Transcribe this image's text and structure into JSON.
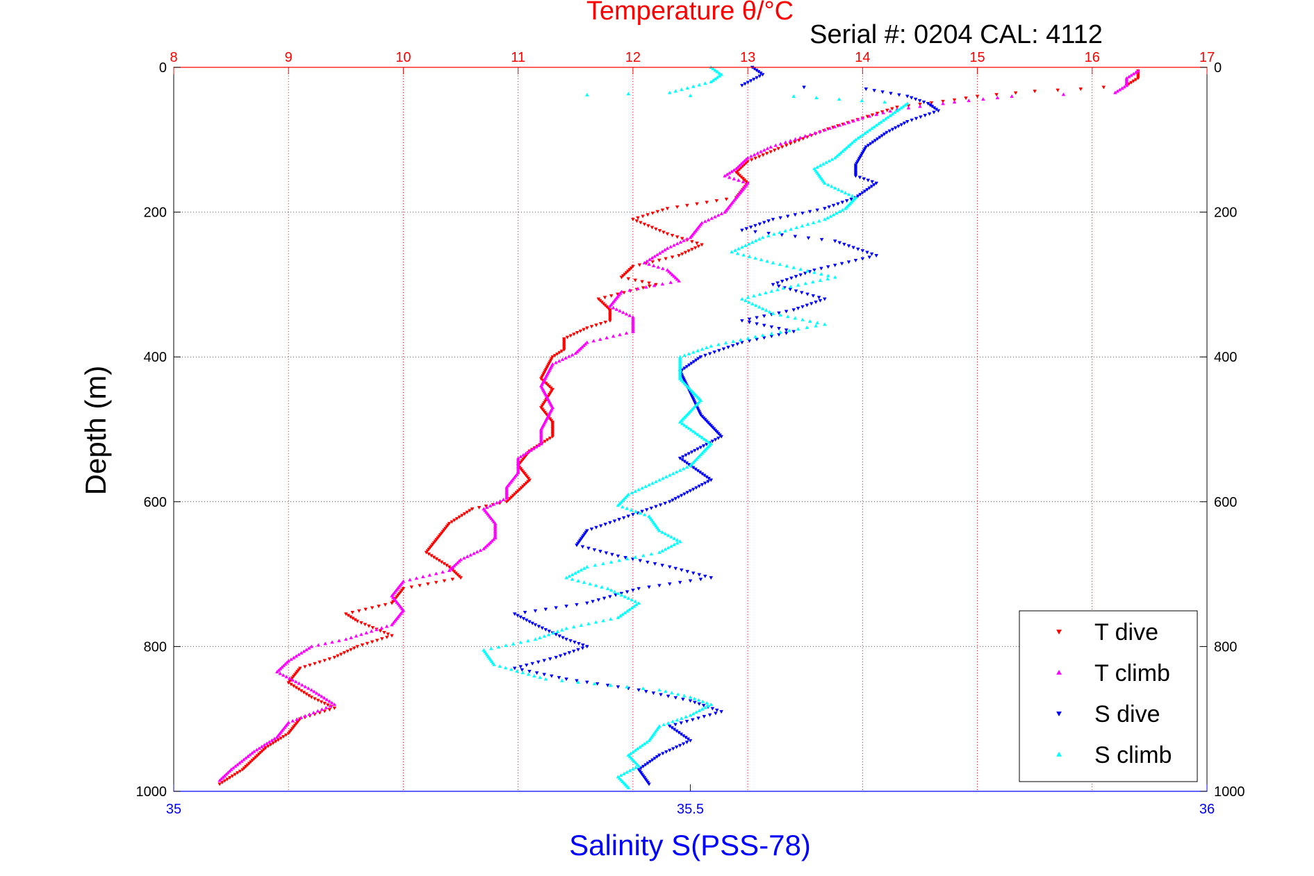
{
  "chart_data": {
    "type": "scatter",
    "title": "Temperature θ/°C",
    "annotation": "Serial #: 0204  CAL: 4112",
    "ylabel": "Depth (m)",
    "xlabel_bottom": "Salinity S(PSS-78)",
    "ylim": [
      0,
      1000
    ],
    "y_reversed": true,
    "temperature_axis": {
      "lim": [
        8,
        17
      ],
      "ticks": [
        "8",
        "9",
        "10",
        "11",
        "12",
        "13",
        "14",
        "15",
        "16",
        "17"
      ]
    },
    "salinity_axis": {
      "lim": [
        35,
        36
      ],
      "ticks": [
        "35",
        "35.5",
        "36"
      ]
    },
    "depth_ticks": [
      "0",
      "200",
      "400",
      "600",
      "800",
      "1000"
    ],
    "grid": true,
    "legend_position": "bottom-right",
    "colors": {
      "temp_axis": "#ff0000",
      "sal_axis": "#0000ff",
      "t_dive": "#ff0000",
      "t_climb": "#ff00ff",
      "s_dive": "#0000ff",
      "s_climb": "#00ffff",
      "grid_h": "#555555",
      "grid_v": "#ff0000"
    },
    "series": [
      {
        "name": "T dive",
        "axis": "temperature",
        "marker": "triangle-down",
        "color": "#ff0000",
        "points": [
          [
            16.4,
            5
          ],
          [
            16.4,
            15
          ],
          [
            16.3,
            25
          ],
          [
            15.9,
            30
          ],
          [
            15.5,
            33
          ],
          [
            15.0,
            40
          ],
          [
            14.8,
            45
          ],
          [
            14.3,
            55
          ],
          [
            14.0,
            70
          ],
          [
            13.7,
            85
          ],
          [
            13.3,
            110
          ],
          [
            13.0,
            130
          ],
          [
            12.9,
            145
          ],
          [
            13.0,
            160
          ],
          [
            12.9,
            180
          ],
          [
            12.3,
            195
          ],
          [
            12.0,
            210
          ],
          [
            12.3,
            230
          ],
          [
            12.6,
            245
          ],
          [
            12.4,
            260
          ],
          [
            12.0,
            275
          ],
          [
            11.9,
            290
          ],
          [
            12.2,
            300
          ],
          [
            11.7,
            320
          ],
          [
            11.8,
            335
          ],
          [
            11.8,
            350
          ],
          [
            11.6,
            360
          ],
          [
            11.4,
            375
          ],
          [
            11.4,
            390
          ],
          [
            11.3,
            400
          ],
          [
            11.2,
            430
          ],
          [
            11.3,
            445
          ],
          [
            11.2,
            470
          ],
          [
            11.3,
            490
          ],
          [
            11.3,
            510
          ],
          [
            11.1,
            530
          ],
          [
            11.0,
            550
          ],
          [
            11.1,
            570
          ],
          [
            11.0,
            585
          ],
          [
            10.9,
            600
          ],
          [
            10.6,
            610
          ],
          [
            10.4,
            630
          ],
          [
            10.3,
            650
          ],
          [
            10.2,
            670
          ],
          [
            10.4,
            690
          ],
          [
            10.5,
            705
          ],
          [
            10.0,
            720
          ],
          [
            9.9,
            740
          ],
          [
            9.5,
            755
          ],
          [
            9.6,
            765
          ],
          [
            9.9,
            785
          ],
          [
            9.6,
            800
          ],
          [
            9.4,
            815
          ],
          [
            9.1,
            830
          ],
          [
            9.0,
            850
          ],
          [
            9.2,
            870
          ],
          [
            9.4,
            885
          ],
          [
            9.1,
            900
          ],
          [
            9.0,
            920
          ],
          [
            8.8,
            940
          ],
          [
            8.7,
            955
          ],
          [
            8.6,
            970
          ],
          [
            8.4,
            990
          ]
        ]
      },
      {
        "name": "T climb",
        "axis": "temperature",
        "marker": "triangle-up",
        "color": "#ff00ff",
        "points": [
          [
            16.4,
            5
          ],
          [
            16.3,
            15
          ],
          [
            16.3,
            25
          ],
          [
            16.2,
            35
          ],
          [
            15.3,
            40
          ],
          [
            14.8,
            48
          ],
          [
            14.3,
            58
          ],
          [
            14.0,
            70
          ],
          [
            13.8,
            80
          ],
          [
            13.5,
            95
          ],
          [
            13.2,
            110
          ],
          [
            13.0,
            125
          ],
          [
            12.9,
            140
          ],
          [
            12.8,
            150
          ],
          [
            13.0,
            160
          ],
          [
            12.9,
            180
          ],
          [
            12.8,
            200
          ],
          [
            12.6,
            215
          ],
          [
            12.5,
            235
          ],
          [
            12.3,
            250
          ],
          [
            12.1,
            270
          ],
          [
            12.3,
            280
          ],
          [
            12.4,
            295
          ],
          [
            11.9,
            310
          ],
          [
            11.8,
            330
          ],
          [
            12.0,
            345
          ],
          [
            12.0,
            365
          ],
          [
            11.6,
            380
          ],
          [
            11.5,
            395
          ],
          [
            11.3,
            410
          ],
          [
            11.2,
            440
          ],
          [
            11.3,
            470
          ],
          [
            11.2,
            500
          ],
          [
            11.2,
            520
          ],
          [
            11.0,
            540
          ],
          [
            11.0,
            560
          ],
          [
            10.9,
            580
          ],
          [
            10.9,
            595
          ],
          [
            10.7,
            610
          ],
          [
            10.8,
            630
          ],
          [
            10.8,
            650
          ],
          [
            10.7,
            665
          ],
          [
            10.5,
            680
          ],
          [
            10.4,
            695
          ],
          [
            10.0,
            710
          ],
          [
            9.9,
            730
          ],
          [
            10.0,
            750
          ],
          [
            9.9,
            770
          ],
          [
            9.5,
            790
          ],
          [
            9.2,
            800
          ],
          [
            9.0,
            820
          ],
          [
            8.9,
            835
          ],
          [
            9.2,
            860
          ],
          [
            9.4,
            880
          ],
          [
            9.0,
            905
          ],
          [
            8.9,
            925
          ],
          [
            8.7,
            945
          ],
          [
            8.5,
            970
          ],
          [
            8.4,
            985
          ]
        ]
      },
      {
        "name": "S dive",
        "axis": "salinity",
        "marker": "triangle-down",
        "color": "#0000ff",
        "points": [
          [
            35.56,
            0
          ],
          [
            35.57,
            10
          ],
          [
            35.55,
            25
          ],
          [
            35.67,
            30
          ],
          [
            35.71,
            40
          ],
          [
            35.73,
            50
          ],
          [
            35.74,
            60
          ],
          [
            35.71,
            75
          ],
          [
            35.69,
            90
          ],
          [
            35.67,
            110
          ],
          [
            35.66,
            135
          ],
          [
            35.66,
            150
          ],
          [
            35.68,
            160
          ],
          [
            35.66,
            180
          ],
          [
            35.63,
            195
          ],
          [
            35.58,
            210
          ],
          [
            35.55,
            225
          ],
          [
            35.64,
            240
          ],
          [
            35.68,
            260
          ],
          [
            35.62,
            280
          ],
          [
            35.58,
            300
          ],
          [
            35.63,
            320
          ],
          [
            35.6,
            335
          ],
          [
            35.55,
            350
          ],
          [
            35.6,
            365
          ],
          [
            35.55,
            380
          ],
          [
            35.51,
            400
          ],
          [
            35.49,
            420
          ],
          [
            35.5,
            450
          ],
          [
            35.51,
            480
          ],
          [
            35.53,
            510
          ],
          [
            35.49,
            540
          ],
          [
            35.52,
            570
          ],
          [
            35.48,
            600
          ],
          [
            35.44,
            620
          ],
          [
            35.4,
            640
          ],
          [
            35.39,
            660
          ],
          [
            35.43,
            675
          ],
          [
            35.48,
            690
          ],
          [
            35.52,
            705
          ],
          [
            35.45,
            720
          ],
          [
            35.4,
            740
          ],
          [
            35.33,
            755
          ],
          [
            35.35,
            770
          ],
          [
            35.38,
            790
          ],
          [
            35.4,
            800
          ],
          [
            35.37,
            815
          ],
          [
            35.33,
            830
          ],
          [
            35.38,
            845
          ],
          [
            35.45,
            860
          ],
          [
            35.5,
            875
          ],
          [
            35.53,
            890
          ],
          [
            35.48,
            910
          ],
          [
            35.5,
            930
          ],
          [
            35.47,
            950
          ],
          [
            35.45,
            970
          ],
          [
            35.46,
            990
          ]
        ]
      },
      {
        "name": "S climb",
        "axis": "salinity",
        "marker": "triangle-up",
        "color": "#00ffff",
        "points": [
          [
            35.52,
            0
          ],
          [
            35.53,
            10
          ],
          [
            35.52,
            20
          ],
          [
            35.48,
            35
          ],
          [
            35.4,
            38
          ],
          [
            35.6,
            40
          ],
          [
            35.71,
            50
          ],
          [
            35.7,
            60
          ],
          [
            35.68,
            80
          ],
          [
            35.66,
            100
          ],
          [
            35.64,
            125
          ],
          [
            35.62,
            140
          ],
          [
            35.63,
            160
          ],
          [
            35.66,
            180
          ],
          [
            35.65,
            195
          ],
          [
            35.63,
            210
          ],
          [
            35.57,
            235
          ],
          [
            35.54,
            255
          ],
          [
            35.58,
            270
          ],
          [
            35.64,
            290
          ],
          [
            35.59,
            305
          ],
          [
            35.55,
            320
          ],
          [
            35.58,
            340
          ],
          [
            35.63,
            355
          ],
          [
            35.57,
            370
          ],
          [
            35.52,
            385
          ],
          [
            35.49,
            400
          ],
          [
            35.49,
            430
          ],
          [
            35.51,
            460
          ],
          [
            35.49,
            490
          ],
          [
            35.52,
            520
          ],
          [
            35.5,
            550
          ],
          [
            35.47,
            570
          ],
          [
            35.44,
            590
          ],
          [
            35.43,
            605
          ],
          [
            35.46,
            620
          ],
          [
            35.47,
            640
          ],
          [
            35.49,
            655
          ],
          [
            35.47,
            670
          ],
          [
            35.4,
            690
          ],
          [
            35.38,
            705
          ],
          [
            35.42,
            720
          ],
          [
            35.45,
            740
          ],
          [
            35.43,
            760
          ],
          [
            35.38,
            775
          ],
          [
            35.35,
            790
          ],
          [
            35.3,
            805
          ],
          [
            35.31,
            825
          ],
          [
            35.36,
            845
          ],
          [
            35.47,
            860
          ],
          [
            35.5,
            870
          ],
          [
            35.52,
            880
          ],
          [
            35.5,
            895
          ],
          [
            35.47,
            910
          ],
          [
            35.46,
            930
          ],
          [
            35.44,
            950
          ],
          [
            35.45,
            965
          ],
          [
            35.43,
            980
          ],
          [
            35.44,
            995
          ]
        ]
      }
    ]
  }
}
